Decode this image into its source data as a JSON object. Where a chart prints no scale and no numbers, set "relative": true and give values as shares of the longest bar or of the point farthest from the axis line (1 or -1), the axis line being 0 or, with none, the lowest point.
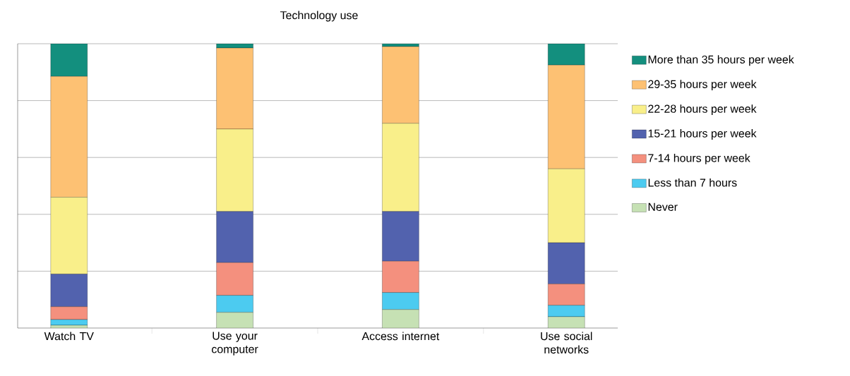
{
  "chart_data": {
    "type": "bar",
    "title": "Technology use",
    "stacked": true,
    "relative": true,
    "grid": "y",
    "legend": "right",
    "categories": [
      "Watch TV",
      "Use your computer",
      "Access internet",
      "Use social networks"
    ],
    "series": [
      {
        "name": "Never",
        "color": "#c6e1b4",
        "values": [
          0.01,
          0.055,
          0.065,
          0.04
        ]
      },
      {
        "name": "Less than 7 hours",
        "color": "#4ccbf0",
        "values": [
          0.02,
          0.06,
          0.06,
          0.04
        ]
      },
      {
        "name": "7-14 hours per week",
        "color": "#f4907e",
        "values": [
          0.045,
          0.115,
          0.11,
          0.075
        ]
      },
      {
        "name": "15-21 hours per week",
        "color": "#5262ae",
        "values": [
          0.115,
          0.18,
          0.175,
          0.145
        ]
      },
      {
        "name": "22-28 hours per week",
        "color": "#f9ef8a",
        "values": [
          0.27,
          0.29,
          0.31,
          0.26
        ]
      },
      {
        "name": "29-35 hours per week",
        "color": "#fdc173",
        "values": [
          0.425,
          0.285,
          0.27,
          0.365
        ]
      },
      {
        "name": "More than 35 hours per week",
        "color": "#138f7e",
        "values": [
          0.115,
          0.015,
          0.01,
          0.075
        ]
      }
    ]
  }
}
